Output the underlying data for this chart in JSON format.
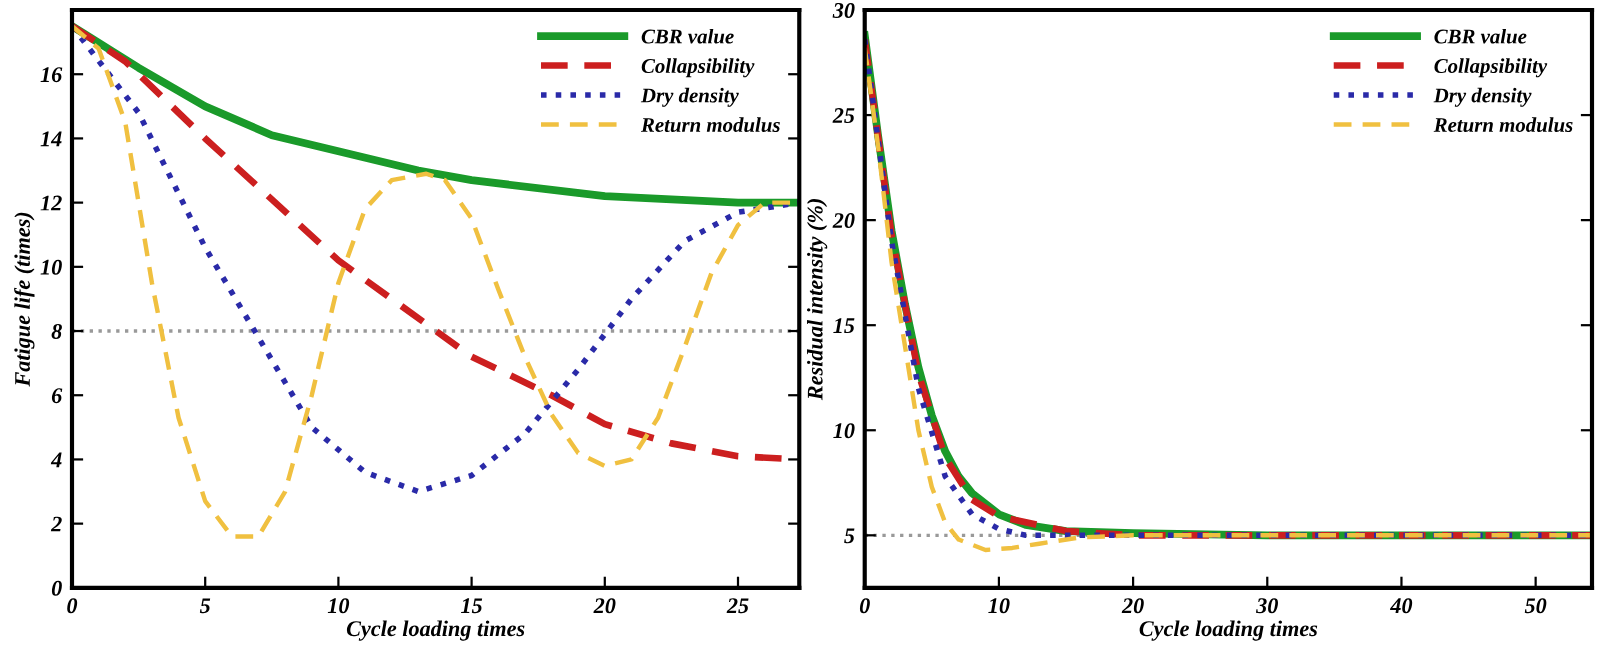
{
  "chart_data": [
    {
      "type": "line",
      "xlabel": "Cycle loading times",
      "ylabel": "Fatigue life (times)",
      "xlim": [
        0,
        27.3
      ],
      "ylim": [
        0,
        18
      ],
      "xticks": [
        0,
        5,
        10,
        15,
        20,
        25
      ],
      "yticks": [
        0,
        2,
        4,
        6,
        8,
        10,
        12,
        14,
        16
      ],
      "legend": "top right",
      "grid": false,
      "ref_lines": [
        {
          "axis": "y",
          "value": 8,
          "color": "#999999",
          "line_style": "dotted"
        }
      ],
      "series": [
        {
          "name": "CBR value",
          "color": "#1a9a2a",
          "line_style": "solid",
          "x": [
            0,
            2.5,
            5,
            7.5,
            10,
            13,
            15,
            20,
            25,
            27.3
          ],
          "values": [
            17.5,
            16.2,
            15.0,
            14.1,
            13.6,
            13.0,
            12.7,
            12.2,
            12.0,
            12.0
          ]
        },
        {
          "name": "Collapsibility",
          "color": "#cc1f1f",
          "line_style": "dashed",
          "x": [
            0,
            2,
            5,
            7.5,
            10,
            12,
            15,
            18,
            20,
            22.5,
            25,
            27.3
          ],
          "values": [
            17.5,
            16.4,
            14.0,
            12.1,
            10.2,
            9.0,
            7.2,
            6.0,
            5.1,
            4.5,
            4.1,
            4.0
          ]
        },
        {
          "name": "Dry density",
          "color": "#2a2aa8",
          "line_style": "dotted",
          "x": [
            0,
            2.5,
            5,
            7,
            9,
            11,
            13,
            15,
            17,
            19,
            21,
            23,
            25,
            27.3
          ],
          "values": [
            17.5,
            14.8,
            10.6,
            7.8,
            5.0,
            3.6,
            3.0,
            3.5,
            4.8,
            6.8,
            9.0,
            10.8,
            11.7,
            12.0
          ]
        },
        {
          "name": "Return modulus",
          "color": "#f0c040",
          "line_style": "dashed",
          "x": [
            0,
            1,
            2,
            3,
            4,
            5,
            6,
            7,
            8,
            9,
            10,
            11,
            12,
            13.3,
            14,
            15,
            16,
            17,
            18,
            19,
            20,
            21,
            22,
            23,
            24,
            25,
            26,
            27.3
          ],
          "values": [
            17.5,
            16.8,
            14.5,
            9.5,
            5.3,
            2.7,
            1.6,
            1.6,
            3.0,
            6.0,
            9.5,
            11.8,
            12.7,
            12.9,
            12.7,
            11.5,
            9.3,
            7.2,
            5.4,
            4.2,
            3.8,
            4.0,
            5.3,
            7.5,
            9.8,
            11.3,
            12.0,
            12.0
          ]
        }
      ]
    },
    {
      "type": "line",
      "xlabel": "Cycle loading times",
      "ylabel": "Residual intensity (%)",
      "xlim": [
        0,
        54.2
      ],
      "ylim": [
        2.5,
        30
      ],
      "xticks": [
        0,
        10,
        20,
        30,
        40,
        50
      ],
      "yticks": [
        5,
        10,
        15,
        20,
        25,
        30
      ],
      "legend": "top right",
      "grid": false,
      "ref_lines": [
        {
          "axis": "y",
          "value": 5,
          "color": "#999999",
          "line_style": "dotted"
        }
      ],
      "series": [
        {
          "name": "CBR value",
          "color": "#1a9a2a",
          "line_style": "solid",
          "x": [
            0,
            1,
            2,
            3,
            4,
            5,
            6,
            7,
            8,
            10,
            12,
            15,
            20,
            30,
            54.2
          ],
          "values": [
            28.8,
            24,
            19.5,
            16,
            13,
            10.7,
            9,
            7.8,
            7,
            6.0,
            5.5,
            5.2,
            5.1,
            5.0,
            5.0
          ]
        },
        {
          "name": "Collapsibility",
          "color": "#cc1f1f",
          "line_style": "dashed",
          "x": [
            0,
            2,
            4,
            6,
            8,
            10,
            15,
            20,
            54.2
          ],
          "values": [
            28.6,
            19.3,
            12.7,
            8.7,
            6.7,
            5.9,
            5.2,
            5.0,
            5.0
          ]
        },
        {
          "name": "Dry density",
          "color": "#2a2aa8",
          "line_style": "dotted",
          "x": [
            0,
            2,
            4,
            6,
            8,
            10,
            12,
            15,
            20,
            54.2
          ],
          "values": [
            28.6,
            19,
            12,
            7.8,
            6.0,
            5.3,
            5.0,
            5.0,
            5.0,
            5.0
          ]
        },
        {
          "name": "Return modulus",
          "color": "#f0c040",
          "line_style": "dashed",
          "x": [
            0,
            1,
            2,
            3,
            4,
            5,
            6,
            7,
            9,
            11,
            13,
            16,
            20,
            54.2
          ],
          "values": [
            28.2,
            23.5,
            18,
            14,
            10,
            7.3,
            5.6,
            4.8,
            4.3,
            4.4,
            4.6,
            4.9,
            5.0,
            5.0
          ]
        }
      ]
    }
  ]
}
